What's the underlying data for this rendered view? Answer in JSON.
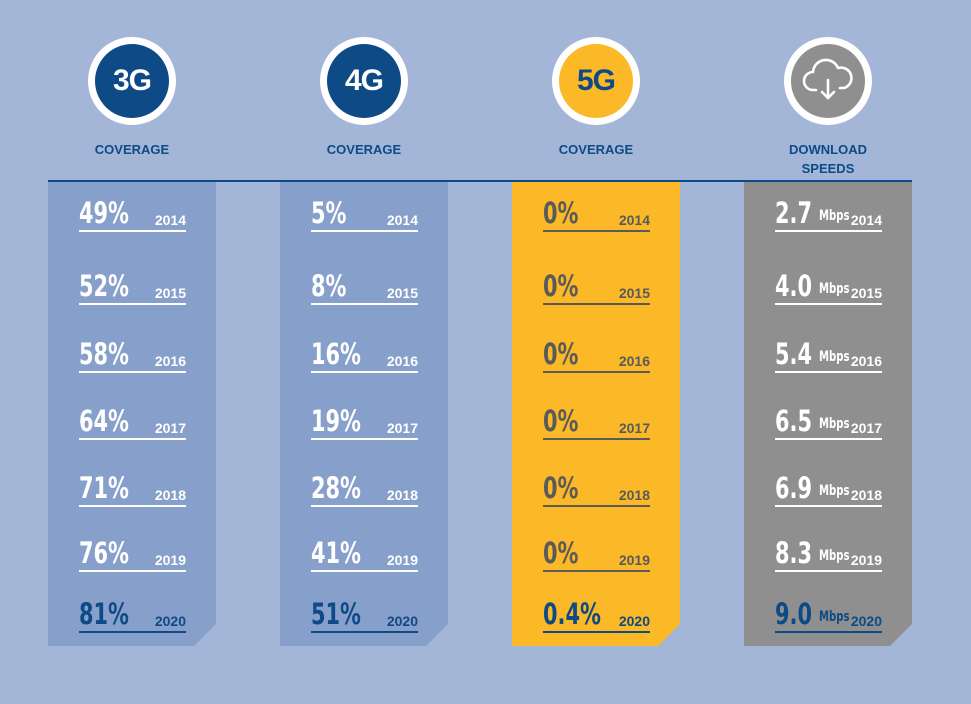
{
  "colors": {
    "background": "#a3b6d8",
    "brand_blue": "#0d4a86",
    "panel_blue": "#87a0cb",
    "panel_yellow": "#fbb827",
    "panel_gray": "#8f8f8f",
    "icon_gray": "#8f8f8f"
  },
  "chart_data": {
    "type": "table",
    "columns": [
      {
        "badge": "3G",
        "title_line1": "COVERAGE",
        "title_line2": "",
        "unit": "",
        "rows": [
          {
            "year": "2014",
            "value": "49%"
          },
          {
            "year": "2015",
            "value": "52%"
          },
          {
            "year": "2016",
            "value": "58%"
          },
          {
            "year": "2017",
            "value": "64%"
          },
          {
            "year": "2018",
            "value": "71%"
          },
          {
            "year": "2019",
            "value": "76%"
          },
          {
            "year": "2020",
            "value": "81%"
          }
        ]
      },
      {
        "badge": "4G",
        "title_line1": "COVERAGE",
        "title_line2": "",
        "unit": "",
        "rows": [
          {
            "year": "2014",
            "value": "5%"
          },
          {
            "year": "2015",
            "value": "8%"
          },
          {
            "year": "2016",
            "value": "16%"
          },
          {
            "year": "2017",
            "value": "19%"
          },
          {
            "year": "2018",
            "value": "28%"
          },
          {
            "year": "2019",
            "value": "41%"
          },
          {
            "year": "2020",
            "value": "51%"
          }
        ]
      },
      {
        "badge": "5G",
        "title_line1": "COVERAGE",
        "title_line2": "",
        "unit": "",
        "rows": [
          {
            "year": "2014",
            "value": "0%"
          },
          {
            "year": "2015",
            "value": "0%"
          },
          {
            "year": "2016",
            "value": "0%"
          },
          {
            "year": "2017",
            "value": "0%"
          },
          {
            "year": "2018",
            "value": "0%"
          },
          {
            "year": "2019",
            "value": "0%"
          },
          {
            "year": "2020",
            "value": "0.4%"
          }
        ]
      },
      {
        "badge": "",
        "badge_icon": "cloud-download-icon",
        "title_line1": "DOWNLOAD",
        "title_line2": "SPEEDS",
        "unit": "Mbps",
        "rows": [
          {
            "year": "2014",
            "value": "2.7"
          },
          {
            "year": "2015",
            "value": "4.0"
          },
          {
            "year": "2016",
            "value": "5.4"
          },
          {
            "year": "2017",
            "value": "6.5"
          },
          {
            "year": "2018",
            "value": "6.9"
          },
          {
            "year": "2019",
            "value": "8.3"
          },
          {
            "year": "2020",
            "value": "9.0"
          }
        ]
      }
    ]
  }
}
